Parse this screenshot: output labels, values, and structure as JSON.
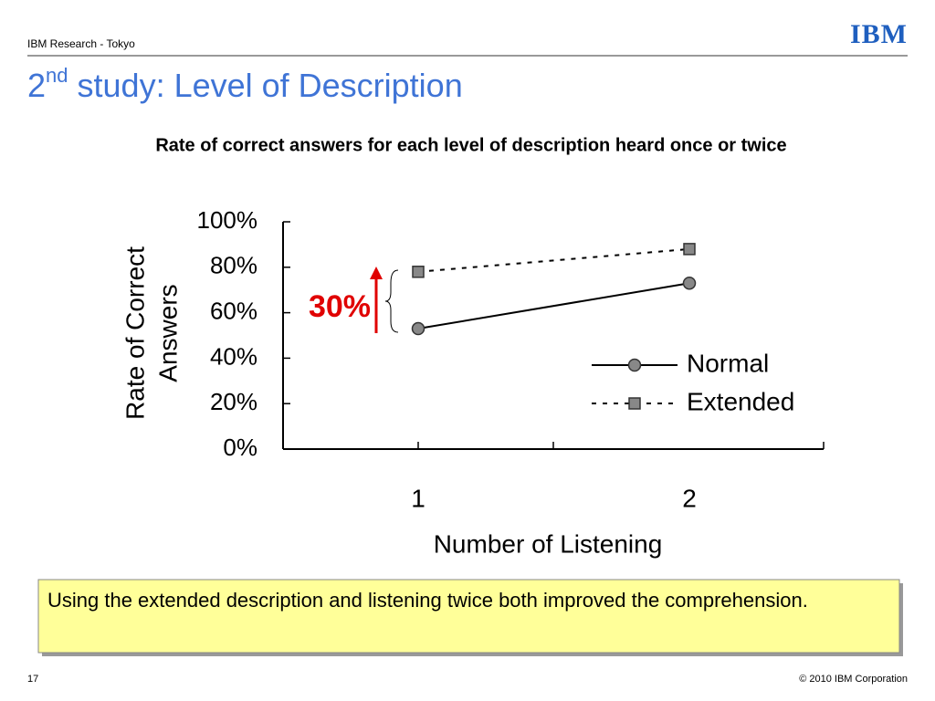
{
  "slide": {
    "header": "IBM Research - Tokyo",
    "logo": "IBM",
    "title": {
      "main": "2",
      "superscript": "nd",
      "rest": " study: Level of Description"
    },
    "callout": "Using the extended description and listening twice both improved the comprehension.",
    "page_number": "17",
    "copyright": "© 2010 IBM Corporation"
  },
  "chart_data": {
    "type": "line",
    "title": "Rate of correct answers for each level of description heard once or twice",
    "y_label": [
      "Rate of Correct",
      "Answers"
    ],
    "x_label": "Number of Listening",
    "categories": [
      "1",
      "2"
    ],
    "series": [
      {
        "name": "Normal",
        "color": "#000000",
        "marker": "circle",
        "dashed": false,
        "values": [
          53,
          73
        ]
      },
      {
        "name": "Extended",
        "color": "#000000",
        "marker": "square",
        "dashed": true,
        "values": [
          78,
          88
        ]
      }
    ],
    "ylim": [
      0,
      100
    ],
    "yticks": [
      {
        "value": 0,
        "label": "0%"
      },
      {
        "value": 20,
        "label": "20%"
      },
      {
        "value": 40,
        "label": "40%"
      },
      {
        "value": 60,
        "label": "60%"
      },
      {
        "value": 80,
        "label": "80%"
      },
      {
        "value": 100,
        "label": "100%"
      }
    ],
    "annotations": [
      "30%"
    ]
  }
}
